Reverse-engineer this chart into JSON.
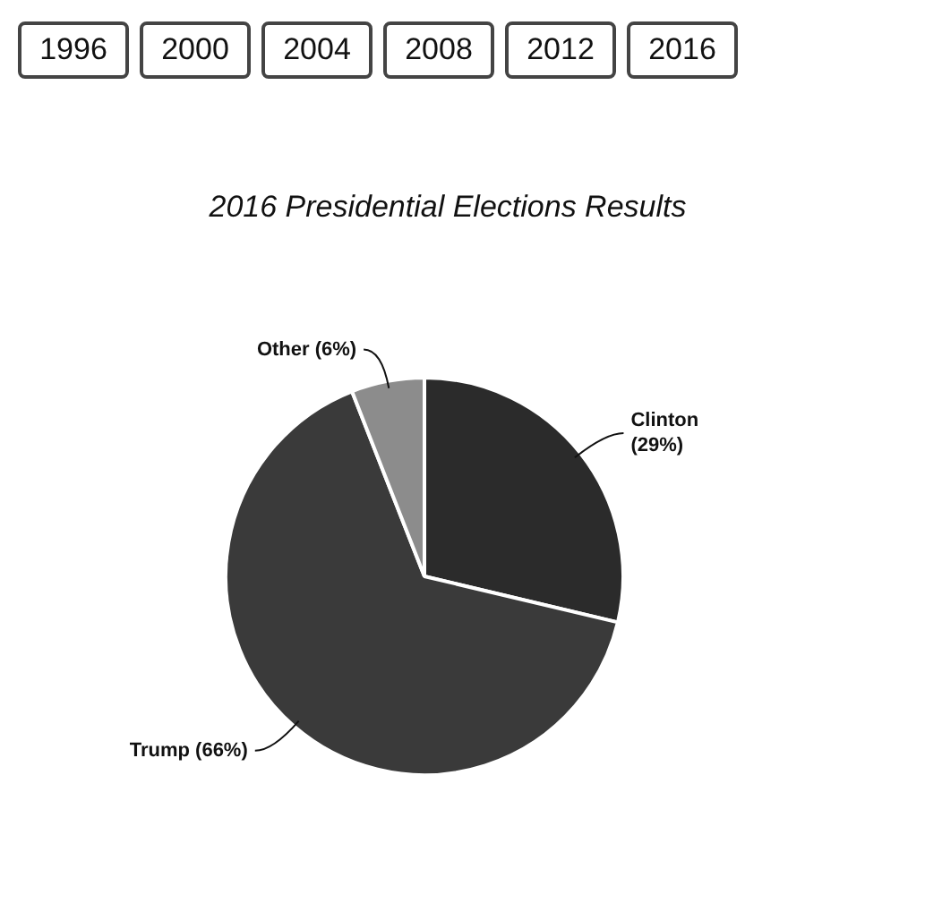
{
  "chart_data": {
    "type": "pie",
    "title": "2016 Presidential Elections Results",
    "categories": [
      "Clinton",
      "Trump",
      "Other"
    ],
    "values": [
      29,
      66,
      6
    ],
    "value_labels": [
      "(29%)",
      "(66%)",
      "(6%)"
    ],
    "colors": [
      "#2b2b2b",
      "#3a3a3a",
      "#8c8c8c"
    ],
    "legend": false,
    "annotations": [
      "1996",
      "2000",
      "2004",
      "2008",
      "2012",
      "2016"
    ]
  }
}
